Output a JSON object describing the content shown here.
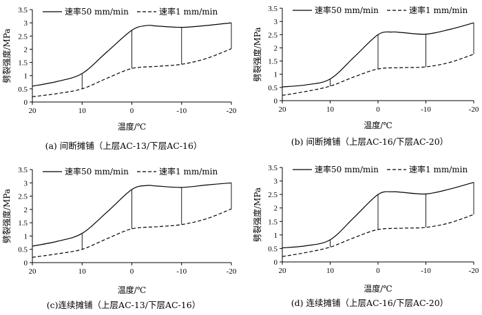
{
  "chart_data": [
    {
      "type": "line",
      "caption": "(a) 间断摊铺（上层AC-13/下层AC-16）",
      "xlabel": "温度/℃",
      "ylabel": "劈裂强度/MPa",
      "x_ticks": [
        "20",
        "10",
        "0",
        "-10",
        "-20"
      ],
      "y_ticks": [
        "0",
        "0.5",
        "1",
        "1.5",
        "2",
        "2.5",
        "3",
        "3.5"
      ],
      "xlim": [
        20,
        -20
      ],
      "ylim": [
        0,
        3.5
      ],
      "legend": {
        "position": "top",
        "entries": [
          "速率50 mm/min",
          "速率1 mm/min"
        ]
      },
      "series": [
        {
          "name": "速率50 mm/min",
          "style": "solid",
          "x": [
            20,
            15,
            10,
            5,
            0,
            -3,
            -5,
            -10,
            -15,
            -20
          ],
          "y": [
            0.6,
            0.78,
            1.08,
            1.9,
            2.72,
            2.9,
            2.88,
            2.83,
            2.9,
            3.0
          ]
        },
        {
          "name": "速率1 mm/min",
          "style": "dashed",
          "x": [
            20,
            15,
            10,
            5,
            0,
            -5,
            -10,
            -15,
            -20
          ],
          "y": [
            0.2,
            0.32,
            0.5,
            0.9,
            1.27,
            1.35,
            1.43,
            1.65,
            2.02
          ]
        }
      ],
      "connectors_x": [
        10,
        0,
        -10,
        -20
      ]
    },
    {
      "type": "line",
      "caption": "(b) 间断摊铺（上层AC-16/下层AC-20）",
      "xlabel": "温度/℃",
      "ylabel": "劈裂强度/MPa",
      "x_ticks": [
        "20",
        "10",
        "0",
        "-10",
        "-20"
      ],
      "y_ticks": [
        "0",
        "0.5",
        "1",
        "1.5",
        "2",
        "2.5",
        "3",
        "3.5"
      ],
      "xlim": [
        20,
        -20
      ],
      "ylim": [
        0,
        3.5
      ],
      "legend": {
        "position": "top",
        "entries": [
          "速率50 mm/min",
          "速率1 mm/min"
        ]
      },
      "series": [
        {
          "name": "速率50 mm/min",
          "style": "solid",
          "x": [
            20,
            15,
            10,
            5,
            0,
            -3,
            -5,
            -10,
            -15,
            -20
          ],
          "y": [
            0.52,
            0.6,
            0.82,
            1.65,
            2.5,
            2.6,
            2.58,
            2.52,
            2.7,
            2.95
          ]
        },
        {
          "name": "速率1 mm/min",
          "style": "dashed",
          "x": [
            20,
            15,
            10,
            5,
            0,
            -5,
            -10,
            -15,
            -20
          ],
          "y": [
            0.2,
            0.35,
            0.55,
            0.9,
            1.2,
            1.25,
            1.28,
            1.45,
            1.76
          ]
        }
      ],
      "connectors_x": [
        10,
        0,
        -10,
        -20
      ]
    },
    {
      "type": "line",
      "caption": "(c)连续摊铺（上层AC-13/下层AC-16）",
      "xlabel": "温度/℃",
      "ylabel": "劈裂强度/MPa",
      "x_ticks": [
        "20",
        "10",
        "0",
        "-10",
        "-20"
      ],
      "y_ticks": [
        "0",
        "0.5",
        "1",
        "1.5",
        "2",
        "2.5",
        "3",
        "3.5"
      ],
      "xlim": [
        20,
        -20
      ],
      "ylim": [
        0,
        3.5
      ],
      "legend": {
        "position": "top",
        "entries": [
          "速率50 mm/min",
          "速率1 mm/min"
        ]
      },
      "series": [
        {
          "name": "速率50 mm/min",
          "style": "solid",
          "x": [
            20,
            15,
            10,
            5,
            0,
            -3,
            -5,
            -10,
            -15,
            -20
          ],
          "y": [
            0.62,
            0.8,
            1.1,
            1.9,
            2.75,
            2.9,
            2.88,
            2.83,
            2.92,
            3.0
          ]
        },
        {
          "name": "速率1 mm/min",
          "style": "dashed",
          "x": [
            20,
            15,
            10,
            5,
            0,
            -5,
            -10,
            -15,
            -20
          ],
          "y": [
            0.2,
            0.33,
            0.5,
            0.9,
            1.27,
            1.35,
            1.43,
            1.65,
            2.02
          ]
        }
      ],
      "connectors_x": [
        10,
        0,
        -10,
        -20
      ]
    },
    {
      "type": "line",
      "caption": "(d) 连续摊铺（上层AC-16/下层AC-20）",
      "xlabel": "温度/℃",
      "ylabel": "劈裂强度/MPa",
      "x_ticks": [
        "20",
        "10",
        "0",
        "-10",
        "-20"
      ],
      "y_ticks": [
        "0",
        "0.5",
        "1",
        "1.5",
        "2",
        "2.5",
        "3",
        "3.5"
      ],
      "xlim": [
        20,
        -20
      ],
      "ylim": [
        0,
        3.5
      ],
      "legend": {
        "position": "top",
        "entries": [
          "速率50 mm/min",
          "速率1 mm/min"
        ]
      },
      "series": [
        {
          "name": "速率50 mm/min",
          "style": "solid",
          "x": [
            20,
            15,
            10,
            5,
            0,
            -3,
            -5,
            -10,
            -15,
            -20
          ],
          "y": [
            0.52,
            0.6,
            0.82,
            1.65,
            2.5,
            2.6,
            2.58,
            2.52,
            2.7,
            2.95
          ]
        },
        {
          "name": "速率1 mm/min",
          "style": "dashed",
          "x": [
            20,
            15,
            10,
            5,
            0,
            -5,
            -10,
            -15,
            -20
          ],
          "y": [
            0.2,
            0.35,
            0.55,
            0.9,
            1.2,
            1.25,
            1.28,
            1.45,
            1.76
          ]
        }
      ],
      "connectors_x": [
        10,
        0,
        -10,
        -20
      ]
    }
  ]
}
